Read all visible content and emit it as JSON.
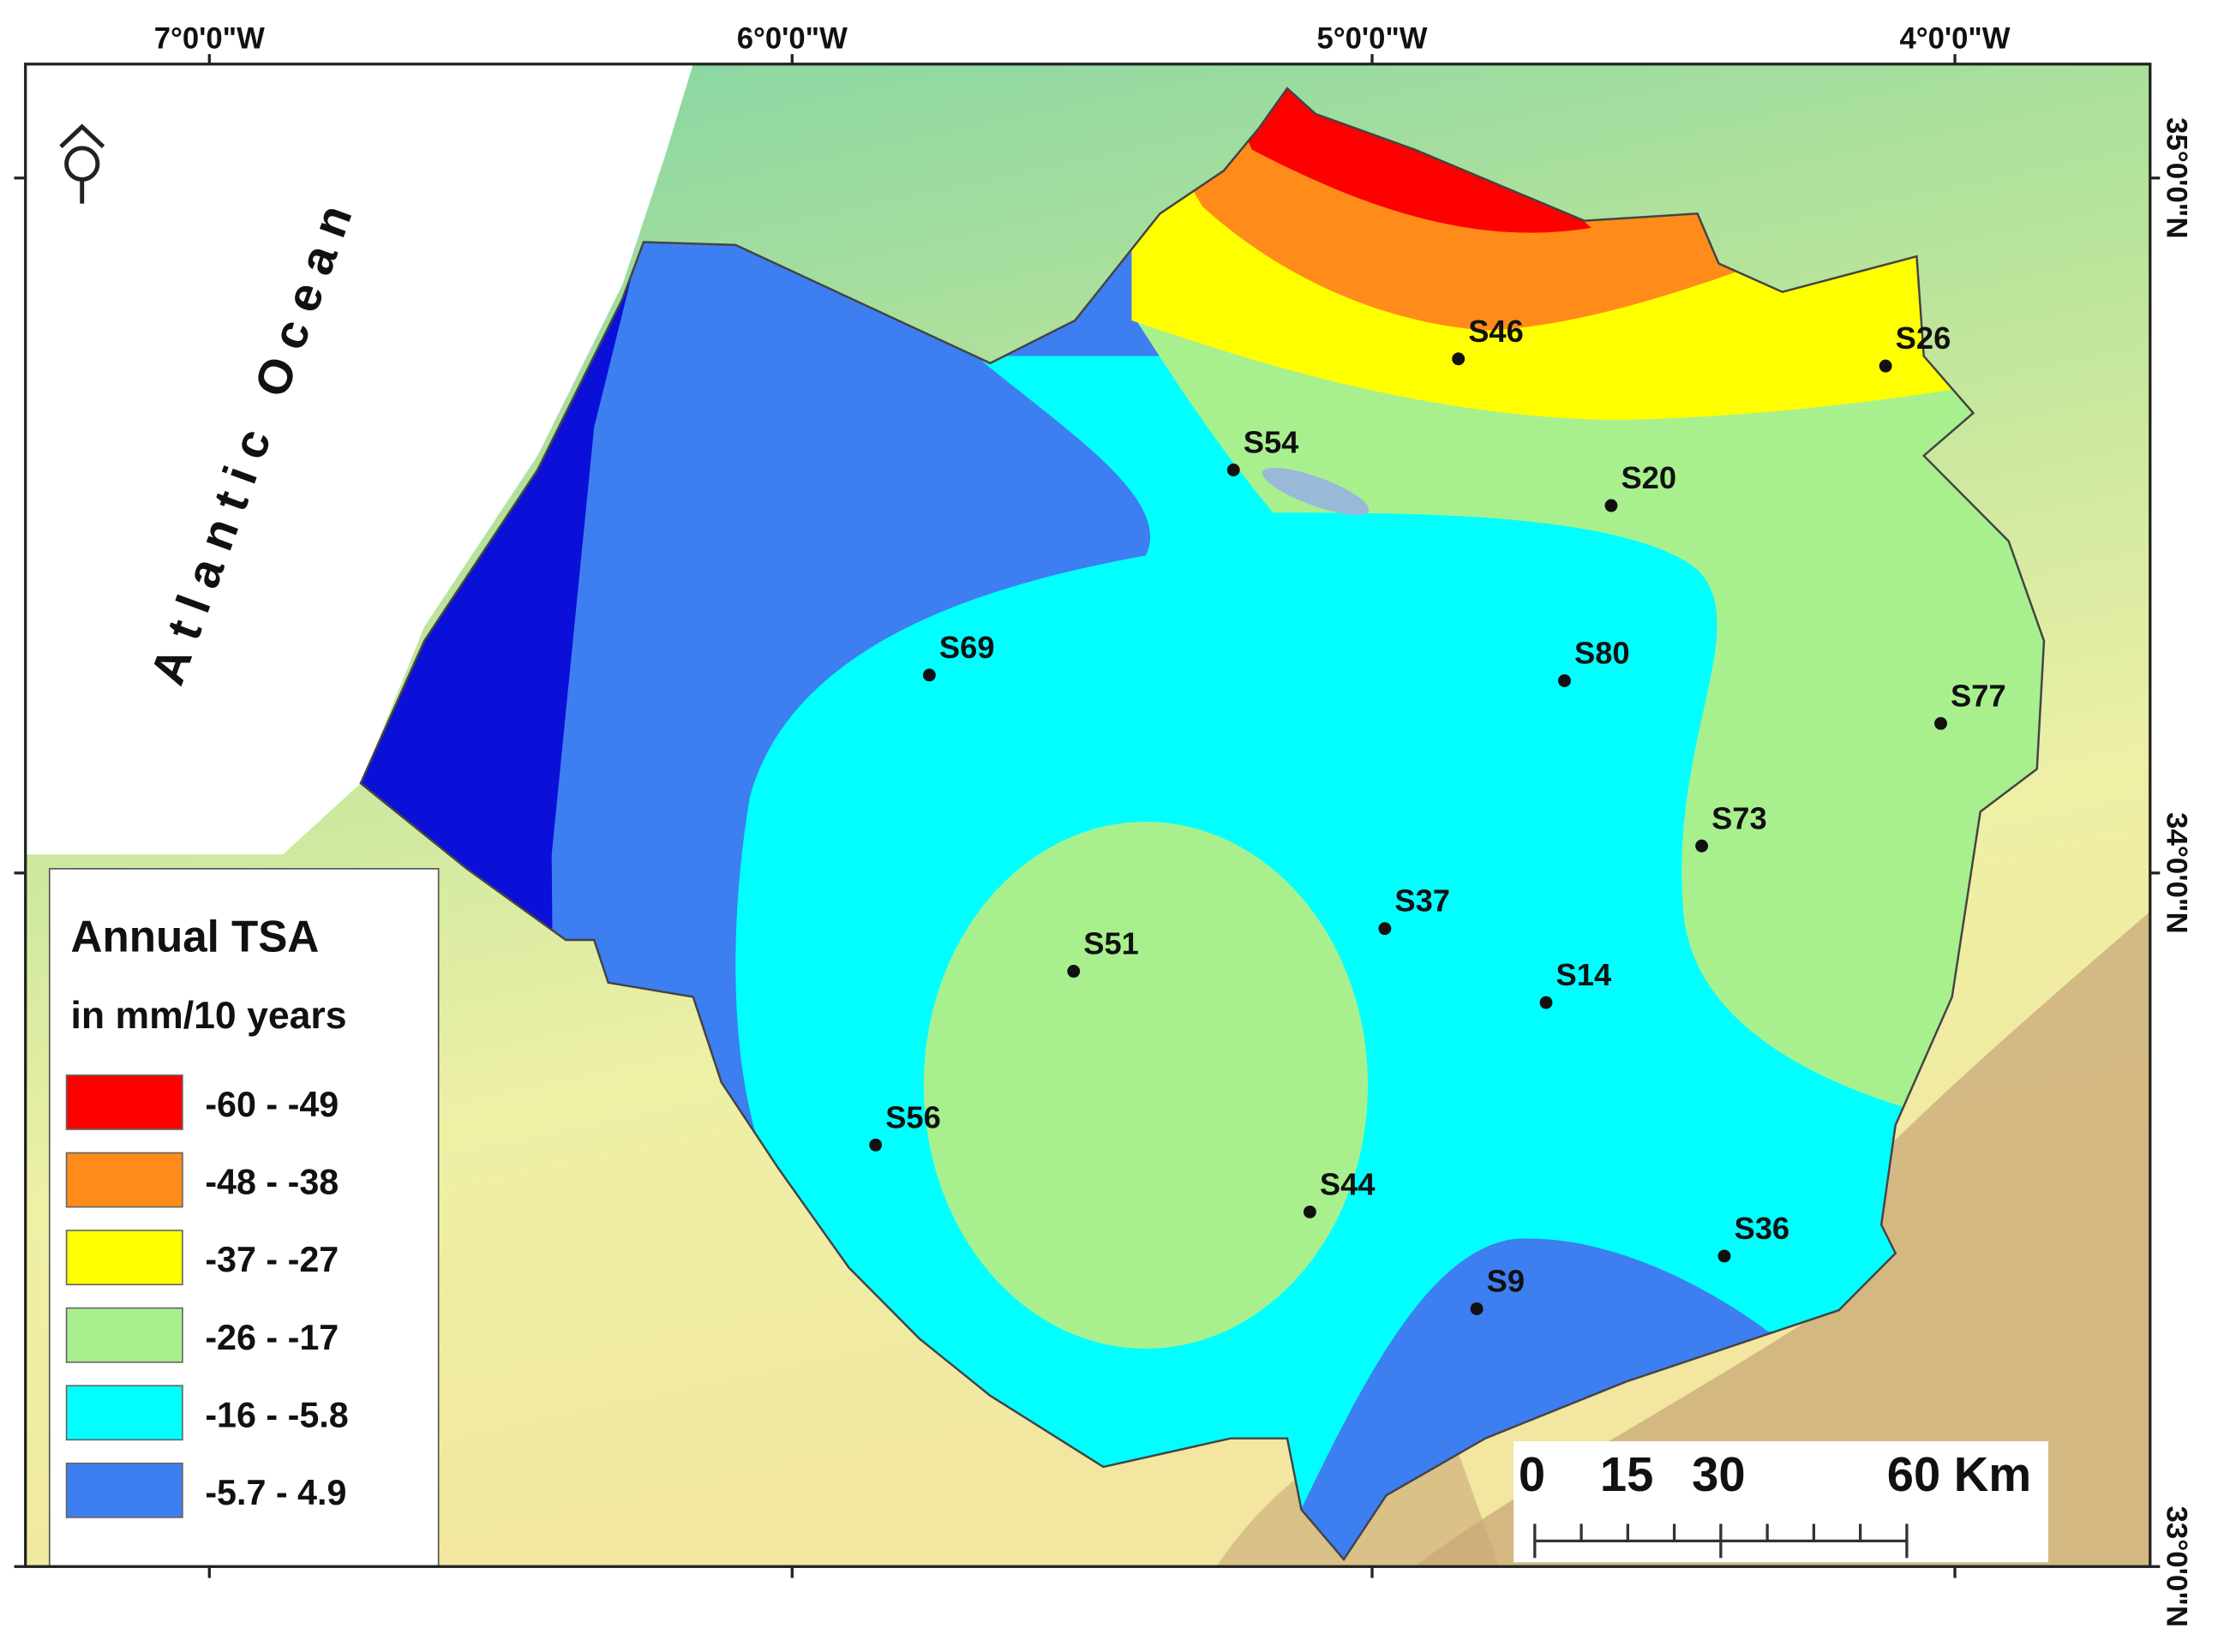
{
  "map": {
    "ocean_label": "Atlantic Ocean",
    "longitude_labels": [
      "7°0'0\"W",
      "6°0'0\"W",
      "5°0'0\"W",
      "4°0'0\"W"
    ],
    "latitude_labels": [
      "35°0'0\"N",
      "34°0'0\"N",
      "33°0'0\"N"
    ],
    "legend": {
      "title": "Annual TSA",
      "subtitle": "in mm/10 years",
      "classes": [
        {
          "label": "-60 - -49",
          "color": "#ff0000"
        },
        {
          "label": "-48 - -38",
          "color": "#ff8c1a"
        },
        {
          "label": "-37 - -27",
          "color": "#ffff00"
        },
        {
          "label": "-26 - -17",
          "color": "#a8f08e"
        },
        {
          "label": "-16 - -5.8",
          "color": "#00ffff"
        },
        {
          "label": "-5.7 - 4.9",
          "color": "#3d7ef0"
        }
      ]
    },
    "stations": [
      "S46",
      "S26",
      "S54",
      "S20",
      "S69",
      "S80",
      "S77",
      "S73",
      "S37",
      "S51",
      "S14",
      "S56",
      "S44",
      "S36",
      "S9"
    ],
    "scale_bar": {
      "labels": [
        "0",
        "15",
        "30",
        "60 Km"
      ]
    }
  }
}
